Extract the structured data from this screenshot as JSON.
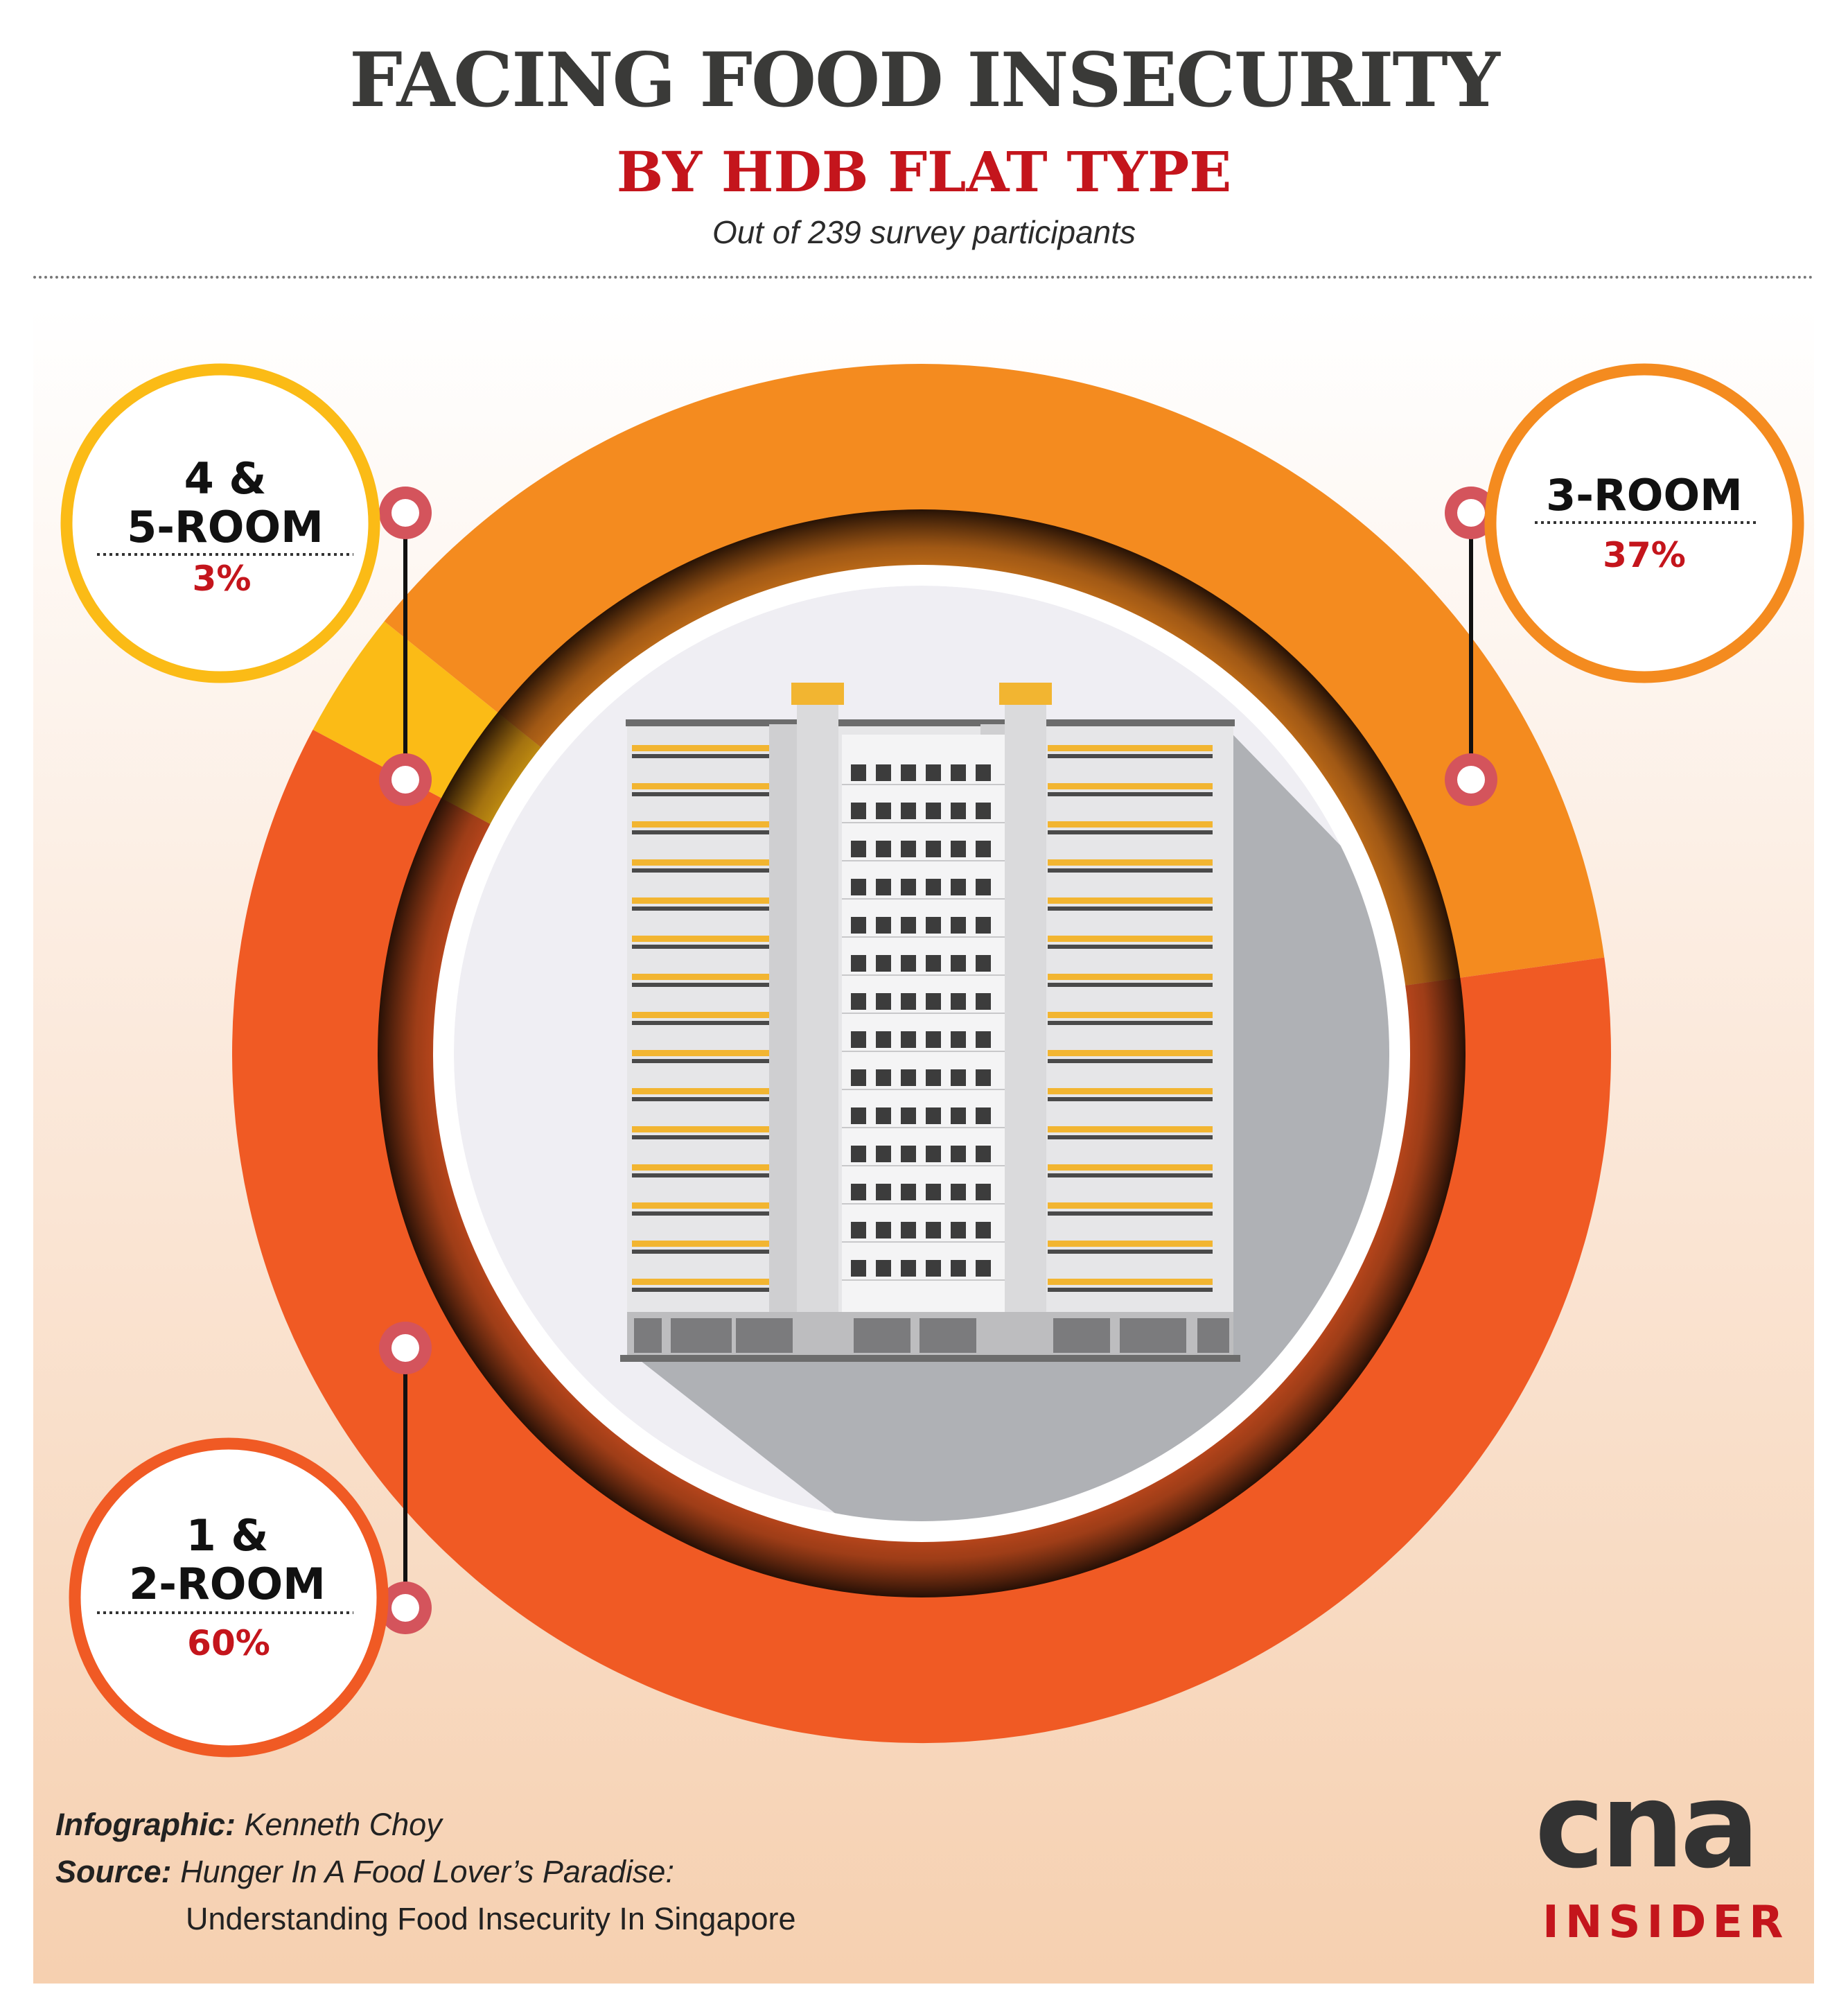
{
  "header": {
    "title": "FACING FOOD INSECURITY",
    "subtitle": "BY HDB FLAT TYPE",
    "note": "Out of 239 survey participants"
  },
  "chart_data": {
    "type": "pie",
    "title": "FACING FOOD INSECURITY",
    "subtitle": "BY HDB FLAT TYPE",
    "categories": [
      "4 & 5-ROOM",
      "3-ROOM",
      "1 & 2-ROOM"
    ],
    "values": [
      3,
      37,
      60
    ],
    "labels": [
      "3%",
      "37%",
      "60%"
    ],
    "colors": [
      "#fbbb16",
      "#f48b1f",
      "#f05a24"
    ],
    "donut": true
  },
  "callouts": [
    {
      "line1": "4 &",
      "line2": "5-ROOM",
      "value": "3%"
    },
    {
      "line1": "3-ROOM",
      "line2": "",
      "value": "37%"
    },
    {
      "line1": "1 &",
      "line2": "2-ROOM",
      "value": "60%"
    }
  ],
  "footer": {
    "infographic_label": "Infographic:",
    "infographic_value": "Kenneth Choy",
    "source_label": "Source:",
    "source_line1": "Hunger In A Food Lover’s Paradise:",
    "source_line2": "Understanding Food Insecurity In Singapore"
  },
  "logo": {
    "main": "cna",
    "sub": "INSIDER"
  },
  "colors": {
    "accent_red": "#c4151c",
    "dark_text": "#3a3a38",
    "marker": "#d4545c"
  }
}
